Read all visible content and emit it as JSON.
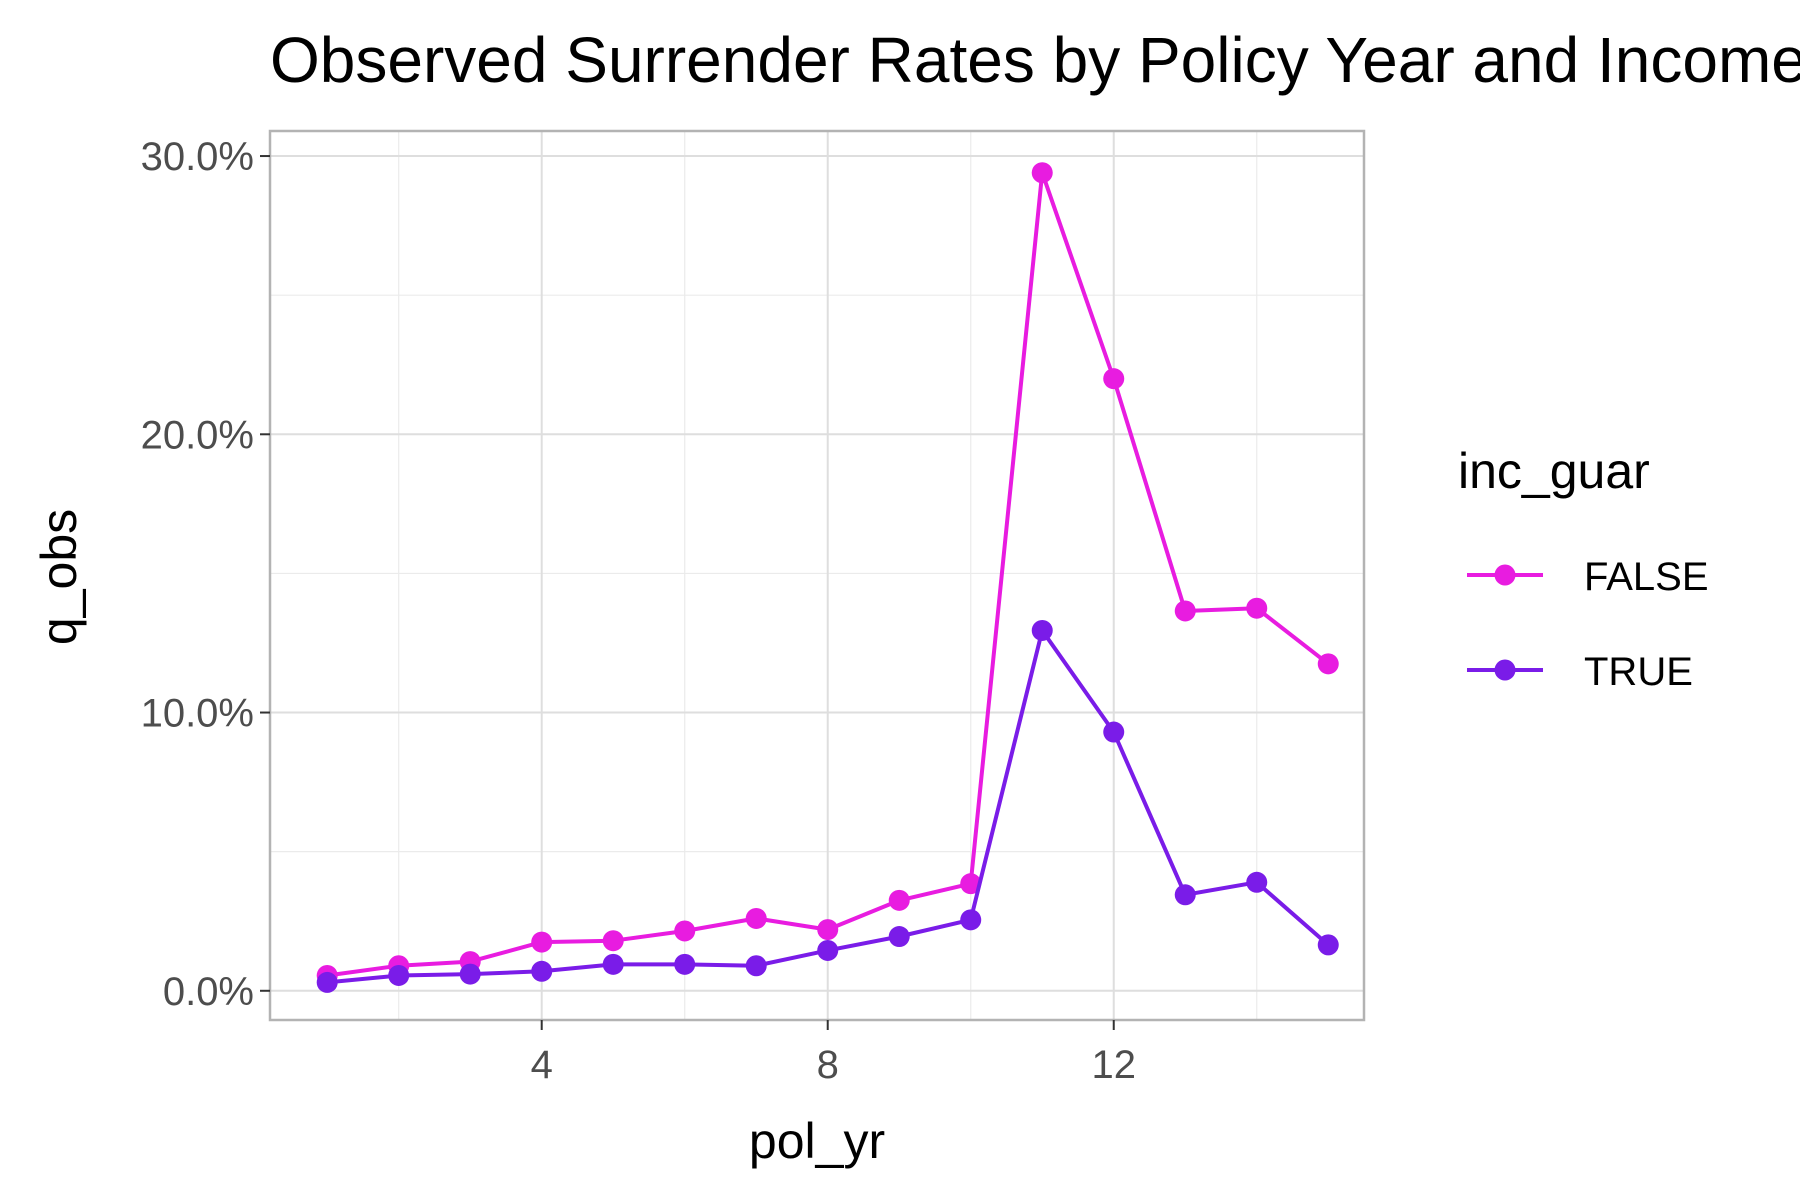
{
  "chart_data": {
    "type": "line",
    "title": "Observed Surrender Rates by Policy Year and Income Guarantee",
    "xlabel": "pol_yr",
    "ylabel": "q_obs",
    "x": [
      1,
      2,
      3,
      4,
      5,
      6,
      7,
      8,
      9,
      10,
      11,
      12,
      13,
      14,
      15
    ],
    "xlim": [
      0.2,
      15.5
    ],
    "ylim": [
      -1.05,
      30.9
    ],
    "x_ticks": [
      4,
      8,
      12
    ],
    "x_tick_labels": [
      "4",
      "8",
      "12"
    ],
    "y_ticks": [
      0,
      10,
      20,
      30
    ],
    "y_tick_labels": [
      "0.0%",
      "10.0%",
      "20.0%",
      "30.0%"
    ],
    "y_minor_ticks": [
      5,
      15,
      25
    ],
    "x_minor_ticks": [
      2,
      6,
      10,
      14
    ],
    "grid": true,
    "legend": {
      "title": "inc_guar",
      "position": "right"
    },
    "series": [
      {
        "name": "FALSE",
        "color": "#E81CE0",
        "values": [
          0.55,
          0.9,
          1.05,
          1.75,
          1.8,
          2.15,
          2.6,
          2.2,
          3.25,
          3.85,
          29.4,
          22.0,
          13.65,
          13.75,
          11.75
        ]
      },
      {
        "name": "TRUE",
        "color": "#7A1CE8",
        "values": [
          0.3,
          0.55,
          0.6,
          0.7,
          0.95,
          0.95,
          0.9,
          1.45,
          1.95,
          2.55,
          12.95,
          9.3,
          3.45,
          3.9,
          1.65
        ]
      }
    ]
  }
}
